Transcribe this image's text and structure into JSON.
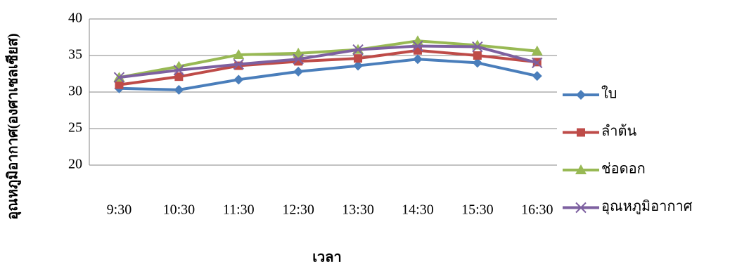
{
  "chart_data": {
    "type": "line",
    "x_label": "เวลา",
    "y_label": "อุณหภูมิอากาศ(องศาเซลเซียส)",
    "categories": [
      "9:30",
      "10:30",
      "11:30",
      "12:30",
      "13:30",
      "14:30",
      "15:30",
      "16:30"
    ],
    "series": [
      {
        "name": "ใบ",
        "color": "#4a7ebb",
        "marker": "diamond",
        "values": [
          30.5,
          30.3,
          31.7,
          32.8,
          33.6,
          34.5,
          34.0,
          32.2
        ]
      },
      {
        "name": "ลำต้น",
        "color": "#be4b48",
        "marker": "square",
        "values": [
          31.0,
          32.1,
          33.6,
          34.2,
          34.6,
          35.7,
          35.0,
          34.1
        ]
      },
      {
        "name": "ช่อดอก",
        "color": "#98b954",
        "marker": "triangle",
        "values": [
          32.0,
          33.5,
          35.1,
          35.3,
          35.8,
          37.0,
          36.4,
          35.6
        ]
      },
      {
        "name": "อุณหภูมิอากาศ",
        "color": "#7d60a0",
        "marker": "x",
        "values": [
          32.0,
          33.0,
          33.8,
          34.5,
          35.8,
          36.3,
          36.2,
          34.0
        ]
      }
    ],
    "ylim": [
      20,
      40
    ],
    "yticks": [
      20,
      25,
      30,
      35,
      40
    ],
    "grid": true,
    "legend": "right"
  }
}
